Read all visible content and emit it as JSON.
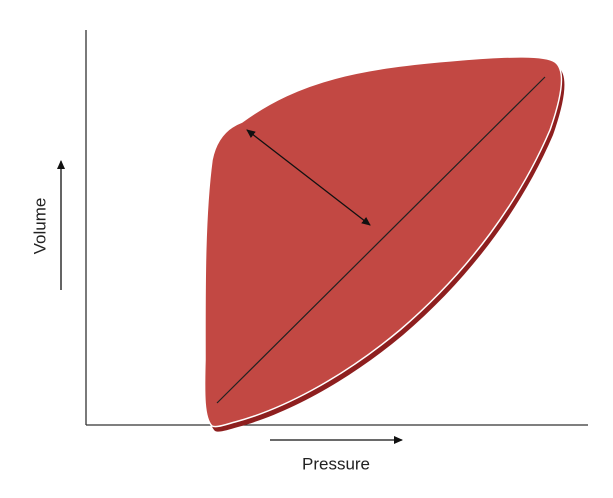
{
  "axes": {
    "y_label": "Volume",
    "x_label": "Pressure"
  }
}
